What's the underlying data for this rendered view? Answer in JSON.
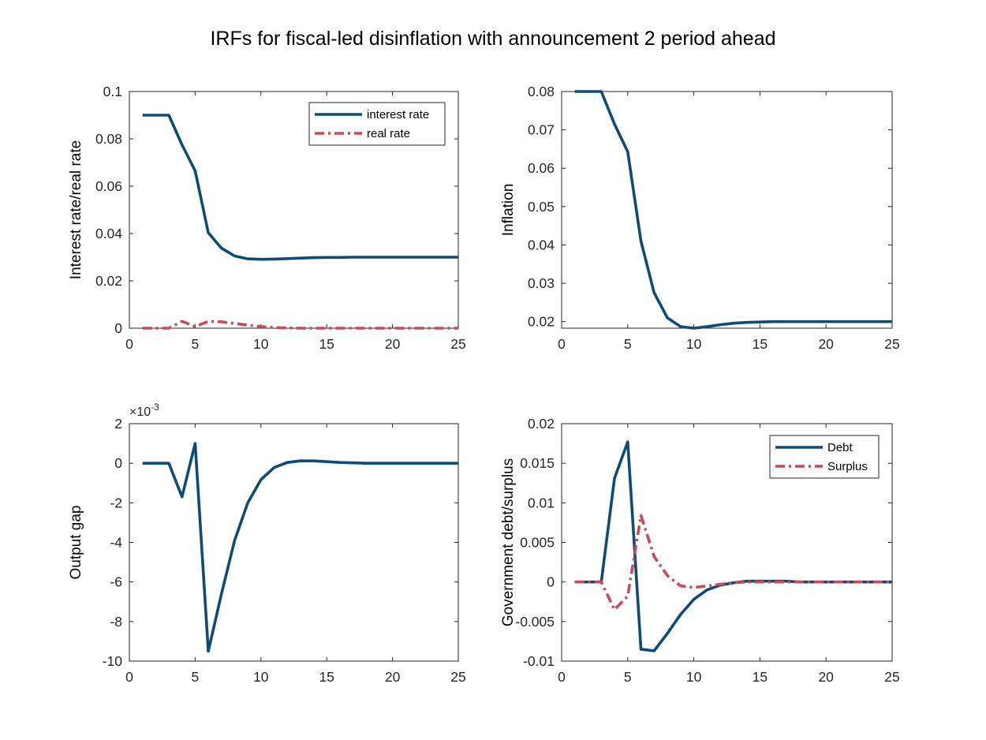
{
  "figure": {
    "title": "IRFs for fiscal-led disinflation with announcement 2 period ahead"
  },
  "colors": {
    "series_blue": "#0e4c73",
    "series_red": "#c94a5a",
    "axis": "#262626"
  },
  "chart_data": [
    {
      "type": "line",
      "ylabel": "Interest rate/real rate",
      "xlim": [
        0,
        25
      ],
      "ylim": [
        0,
        0.1
      ],
      "xticks": [
        0,
        5,
        10,
        15,
        20,
        25
      ],
      "yticks": [
        0,
        0.02,
        0.04,
        0.06,
        0.08,
        0.1
      ],
      "ytick_labels": [
        "0",
        "0.02",
        "0.04",
        "0.06",
        "0.08",
        "0.1"
      ],
      "grid": false,
      "legend": "top-right",
      "x": [
        1,
        2,
        3,
        4,
        5,
        6,
        7,
        8,
        9,
        10,
        11,
        12,
        13,
        14,
        15,
        16,
        17,
        18,
        19,
        20,
        21,
        22,
        23,
        24,
        25
      ],
      "series": [
        {
          "name": "interest rate",
          "color": "#0e4c73",
          "style": "solid",
          "values": [
            0.09,
            0.09,
            0.09,
            0.0775,
            0.0665,
            0.0403,
            0.0338,
            0.0305,
            0.0293,
            0.0291,
            0.0292,
            0.0294,
            0.0296,
            0.0298,
            0.0299,
            0.0299,
            0.03,
            0.03,
            0.03,
            0.03,
            0.03,
            0.03,
            0.03,
            0.03,
            0.03
          ]
        },
        {
          "name": "real rate",
          "color": "#c94a5a",
          "style": "dashdot",
          "values": [
            0,
            0,
            0,
            0.0029,
            0.0007,
            0.0029,
            0.0027,
            0.002,
            0.0013,
            0.0007,
            0.0003,
            0.0001,
            0,
            0,
            0,
            0,
            0,
            0,
            0,
            0,
            0,
            0,
            0,
            0,
            0
          ]
        }
      ]
    },
    {
      "type": "line",
      "ylabel": "Inflation",
      "xlim": [
        0,
        25
      ],
      "ylim": [
        0.0183,
        0.08
      ],
      "xticks": [
        0,
        5,
        10,
        15,
        20,
        25
      ],
      "yticks": [
        0.02,
        0.03,
        0.04,
        0.05,
        0.06,
        0.07,
        0.08
      ],
      "ytick_labels": [
        "0.02",
        "0.03",
        "0.04",
        "0.05",
        "0.06",
        "0.07",
        "0.08"
      ],
      "grid": false,
      "x": [
        1,
        2,
        3,
        4,
        5,
        6,
        7,
        8,
        9,
        10,
        11,
        12,
        13,
        14,
        15,
        16,
        17,
        18,
        19,
        20,
        21,
        22,
        23,
        24,
        25
      ],
      "series": [
        {
          "color": "#0e4c73",
          "style": "solid",
          "values": [
            0.08,
            0.08,
            0.08,
            0.0715,
            0.0643,
            0.041,
            0.0275,
            0.021,
            0.0187,
            0.0183,
            0.0187,
            0.0192,
            0.0196,
            0.0198,
            0.0199,
            0.02,
            0.02,
            0.02,
            0.02,
            0.02,
            0.02,
            0.02,
            0.02,
            0.02,
            0.02
          ]
        }
      ]
    },
    {
      "type": "line",
      "ylabel": "Output gap",
      "axis_multiplier": "×10",
      "axis_multiplier_exp": "-3",
      "xlim": [
        0,
        25
      ],
      "ylim": [
        -0.01,
        0.002
      ],
      "xticks": [
        0,
        5,
        10,
        15,
        20,
        25
      ],
      "yticks": [
        -0.01,
        -0.008,
        -0.006,
        -0.004,
        -0.002,
        0,
        0.002
      ],
      "ytick_labels": [
        "-10",
        "-8",
        "-6",
        "-4",
        "-2",
        "0",
        "2"
      ],
      "grid": false,
      "x": [
        1,
        2,
        3,
        4,
        5,
        6,
        7,
        8,
        9,
        10,
        11,
        12,
        13,
        14,
        15,
        16,
        17,
        18,
        19,
        20,
        21,
        22,
        23,
        24,
        25
      ],
      "series": [
        {
          "color": "#0e4c73",
          "style": "solid",
          "values": [
            0,
            0,
            0,
            -0.0017,
            0.001,
            -0.0095,
            -0.0066,
            -0.0039,
            -0.002,
            -0.00083,
            -0.00022,
            4e-05,
            0.00012,
            0.00012,
            8e-05,
            4e-05,
            2e-05,
            0,
            0,
            0,
            0,
            0,
            0,
            0,
            0
          ]
        }
      ]
    },
    {
      "type": "line",
      "ylabel": "Government debt/surplus",
      "xlim": [
        0,
        25
      ],
      "ylim": [
        -0.01,
        0.02
      ],
      "xticks": [
        0,
        5,
        10,
        15,
        20,
        25
      ],
      "yticks": [
        -0.01,
        -0.005,
        0,
        0.005,
        0.01,
        0.015,
        0.02
      ],
      "ytick_labels": [
        "-0.01",
        "-0.005",
        "0",
        "0.005",
        "0.01",
        "0.015",
        "0.02"
      ],
      "grid": false,
      "legend": "top-right",
      "x": [
        1,
        2,
        3,
        4,
        5,
        6,
        7,
        8,
        9,
        10,
        11,
        12,
        13,
        14,
        15,
        16,
        17,
        18,
        19,
        20,
        21,
        22,
        23,
        24,
        25
      ],
      "series": [
        {
          "name": "Debt",
          "color": "#0e4c73",
          "style": "solid",
          "values": [
            0,
            0,
            0,
            0.0131,
            0.0177,
            -0.0085,
            -0.0087,
            -0.0065,
            -0.0041,
            -0.0022,
            -0.001,
            -0.0004,
            -0.0001,
            0.0001,
            0.0001,
            0.0001,
            0.0001,
            0,
            0,
            0,
            0,
            0,
            0,
            0,
            0
          ]
        },
        {
          "name": "Surplus",
          "color": "#c94a5a",
          "style": "dashdot",
          "values": [
            0,
            0,
            0,
            -0.0035,
            -0.0018,
            0.0084,
            0.0032,
            0.0008,
            -0.0005,
            -0.0007,
            -0.0005,
            -0.0003,
            -0.0001,
            0,
            0,
            0,
            0,
            0,
            0,
            0,
            0,
            0,
            0,
            0,
            0
          ]
        }
      ]
    }
  ]
}
